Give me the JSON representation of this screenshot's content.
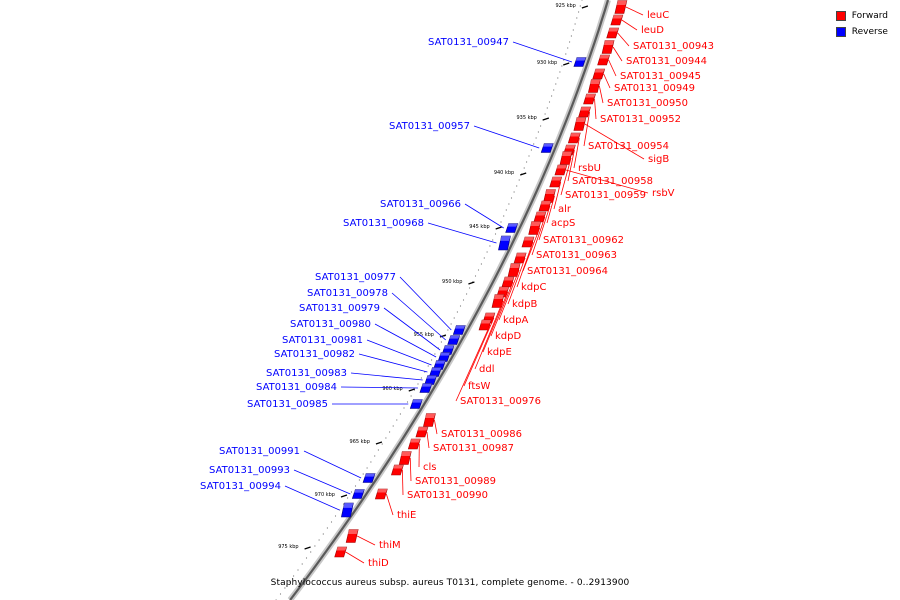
{
  "legend": {
    "forward_label": "Forward",
    "reverse_label": "Reverse",
    "forward_color": "#ff0000",
    "reverse_color": "#0000ff"
  },
  "caption": "Staphylococcus aureus subsp. aureus T0131, complete genome. - 0..2913900",
  "ticks": [
    "925 kbp",
    "930 kbp",
    "935 kbp",
    "940 kbp",
    "945 kbp",
    "950 kbp",
    "955 kbp",
    "960 kbp",
    "965 kbp",
    "970 kbp",
    "975 kbp"
  ],
  "forward_genes": [
    "leuC",
    "leuD",
    "SAT0131_00943",
    "SAT0131_00944",
    "SAT0131_00945",
    "SAT0131_00949",
    "SAT0131_00950",
    "SAT0131_00952",
    "SAT0131_00954",
    "sigB",
    "rsbU",
    "SAT0131_00958",
    "SAT0131_00959",
    "rsbV",
    "alr",
    "acpS",
    "SAT0131_00962",
    "SAT0131_00963",
    "SAT0131_00964",
    "kdpC",
    "kdpB",
    "kdpA",
    "kdpD",
    "kdpE",
    "ddl",
    "ftsW",
    "SAT0131_00976",
    "SAT0131_00986",
    "SAT0131_00987",
    "cls",
    "SAT0131_00989",
    "SAT0131_00990",
    "thiE",
    "thiM",
    "thiD"
  ],
  "reverse_genes": [
    "SAT0131_00947",
    "SAT0131_00957",
    "SAT0131_00966",
    "SAT0131_00968",
    "SAT0131_00977",
    "SAT0131_00978",
    "SAT0131_00979",
    "SAT0131_00980",
    "SAT0131_00981",
    "SAT0131_00982",
    "SAT0131_00983",
    "SAT0131_00984",
    "SAT0131_00985",
    "SAT0131_00991",
    "SAT0131_00993",
    "SAT0131_00994"
  ]
}
